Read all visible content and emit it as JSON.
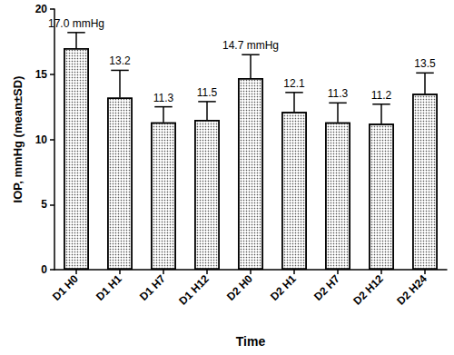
{
  "chart_data": {
    "type": "bar",
    "x_label": "Time",
    "y_label": "IOP, mmHg (mean±SD)",
    "categories": [
      "D1 H0",
      "D1 H1",
      "D1 H7",
      "D1 H12",
      "D2 H0",
      "D2 H1",
      "D2 H7",
      "D2 H12",
      "D2 H24"
    ],
    "values": [
      17.0,
      13.2,
      11.3,
      11.5,
      14.7,
      12.1,
      11.3,
      11.2,
      13.5
    ],
    "value_labels": [
      "17.0 mmHg",
      "13.2",
      "11.3",
      "11.5",
      "14.7 mmHg",
      "12.1",
      "11.3",
      "11.2",
      "13.5"
    ],
    "sd": [
      1.2,
      2.1,
      1.2,
      1.4,
      1.8,
      1.5,
      1.5,
      1.5,
      1.6
    ],
    "color": "#ffffff",
    "ylim": [
      0,
      20
    ],
    "yticks": [
      0,
      5,
      10,
      15,
      20
    ],
    "data_labels": true,
    "grid": false
  }
}
